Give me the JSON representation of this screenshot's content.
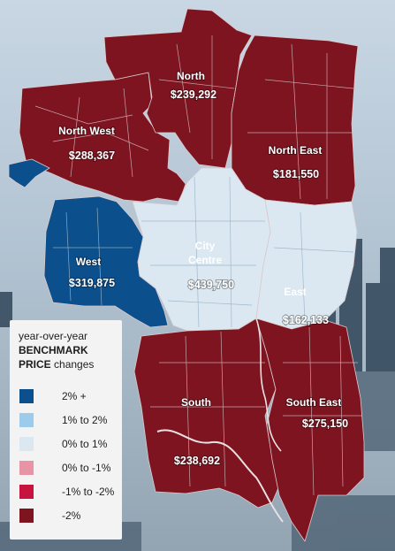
{
  "regions": {
    "north": {
      "name": "North",
      "price": "$239,292"
    },
    "north_west": {
      "name": "North West",
      "price": "$288,367"
    },
    "north_east": {
      "name": "North East",
      "price": "$181,550"
    },
    "west": {
      "name": "West",
      "price": "$319,875"
    },
    "city_centre": {
      "name_line1": "City",
      "name_line2": "Centre",
      "price": "$439,750"
    },
    "east": {
      "name": "East",
      "price": "$162,133"
    },
    "south": {
      "name": "South",
      "price": "$238,692"
    },
    "south_east": {
      "name": "South East",
      "price": "$275,150"
    }
  },
  "legend": {
    "title_line1": "year-over-year",
    "title_line2": "BENCHMARK",
    "title_line3a": "PRICE",
    "title_line3b": " changes",
    "items": [
      {
        "label": "2% +",
        "color": "#0b4f8c"
      },
      {
        "label": "1% to 2%",
        "color": "#9ccbec"
      },
      {
        "label": "0% to 1%",
        "color": "#dbe8f2"
      },
      {
        "label": "0% to -1%",
        "color": "#e993a7"
      },
      {
        "label": "-1% to -2%",
        "color": "#c8133f"
      },
      {
        "label": "-2%",
        "color": "#7e1420"
      }
    ]
  },
  "colors": {
    "red": "#7e1420",
    "blue": "#0b4f8c",
    "light": "#dbe8f2"
  }
}
